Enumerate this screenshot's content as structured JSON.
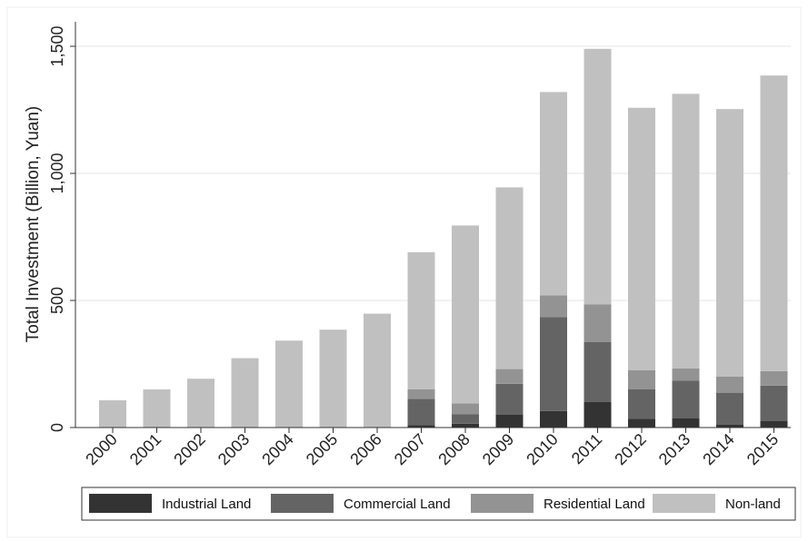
{
  "chart_data": {
    "type": "bar",
    "stacked": true,
    "title": "",
    "xlabel": "",
    "ylabel": "Total Investment (Billion, Yuan)",
    "ylim": [
      0,
      1500
    ],
    "yticks": [
      0,
      500,
      1000,
      1500
    ],
    "ytick_labels": [
      "0",
      "500",
      "1,000",
      "1,500"
    ],
    "grid": "horizontal",
    "legend_position": "bottom",
    "categories": [
      "2000",
      "2001",
      "2002",
      "2003",
      "2004",
      "2005",
      "2006",
      "2007",
      "2008",
      "2009",
      "2010",
      "2011",
      "2012",
      "2013",
      "2014",
      "2015"
    ],
    "series": [
      {
        "name": "Industrial Land",
        "color": "#333333",
        "values": [
          0,
          0,
          0,
          0,
          0,
          0,
          0,
          10,
          15,
          50,
          65,
          100,
          35,
          37,
          12,
          25
        ]
      },
      {
        "name": "Commercial Land",
        "color": "#646464",
        "values": [
          0,
          0,
          0,
          0,
          0,
          0,
          0,
          103,
          38,
          122,
          370,
          237,
          115,
          148,
          125,
          140
        ]
      },
      {
        "name": "Residential Land",
        "color": "#939393",
        "values": [
          0,
          0,
          0,
          0,
          0,
          0,
          0,
          37,
          42,
          58,
          85,
          148,
          75,
          48,
          63,
          57
        ]
      },
      {
        "name": "Non-land",
        "color": "#c0c0c0",
        "values": [
          107,
          150,
          192,
          273,
          342,
          385,
          448,
          540,
          700,
          715,
          800,
          1005,
          1033,
          1080,
          1053,
          1163
        ]
      }
    ]
  }
}
